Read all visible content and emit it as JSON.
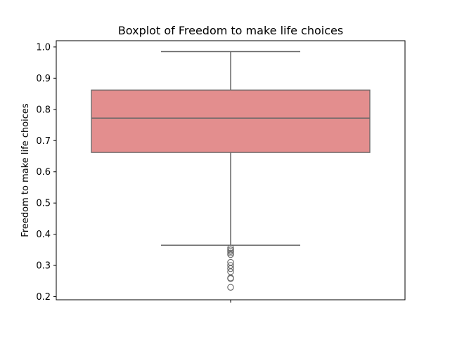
{
  "chart_data": {
    "type": "box",
    "title": "Boxplot of Freedom to make life choices",
    "xlabel": "",
    "ylabel": "Freedom to make life choices",
    "ylim": [
      0.19,
      1.02
    ],
    "yticks": [
      0.2,
      0.3,
      0.4,
      0.5,
      0.6,
      0.7,
      0.8,
      0.9,
      1.0
    ],
    "ytick_labels": [
      "0.2",
      "0.3",
      "0.4",
      "0.5",
      "0.6",
      "0.7",
      "0.8",
      "0.9",
      "1.0"
    ],
    "grid": false,
    "series": [
      {
        "whisker_low": 0.365,
        "q1": 0.662,
        "median": 0.772,
        "q3": 0.862,
        "whisker_high": 0.985,
        "outliers": [
          0.356,
          0.35,
          0.345,
          0.34,
          0.335,
          0.31,
          0.3,
          0.29,
          0.28,
          0.26,
          0.258,
          0.23
        ],
        "color": "#e38e8e",
        "edge_color": "#676767"
      }
    ]
  }
}
